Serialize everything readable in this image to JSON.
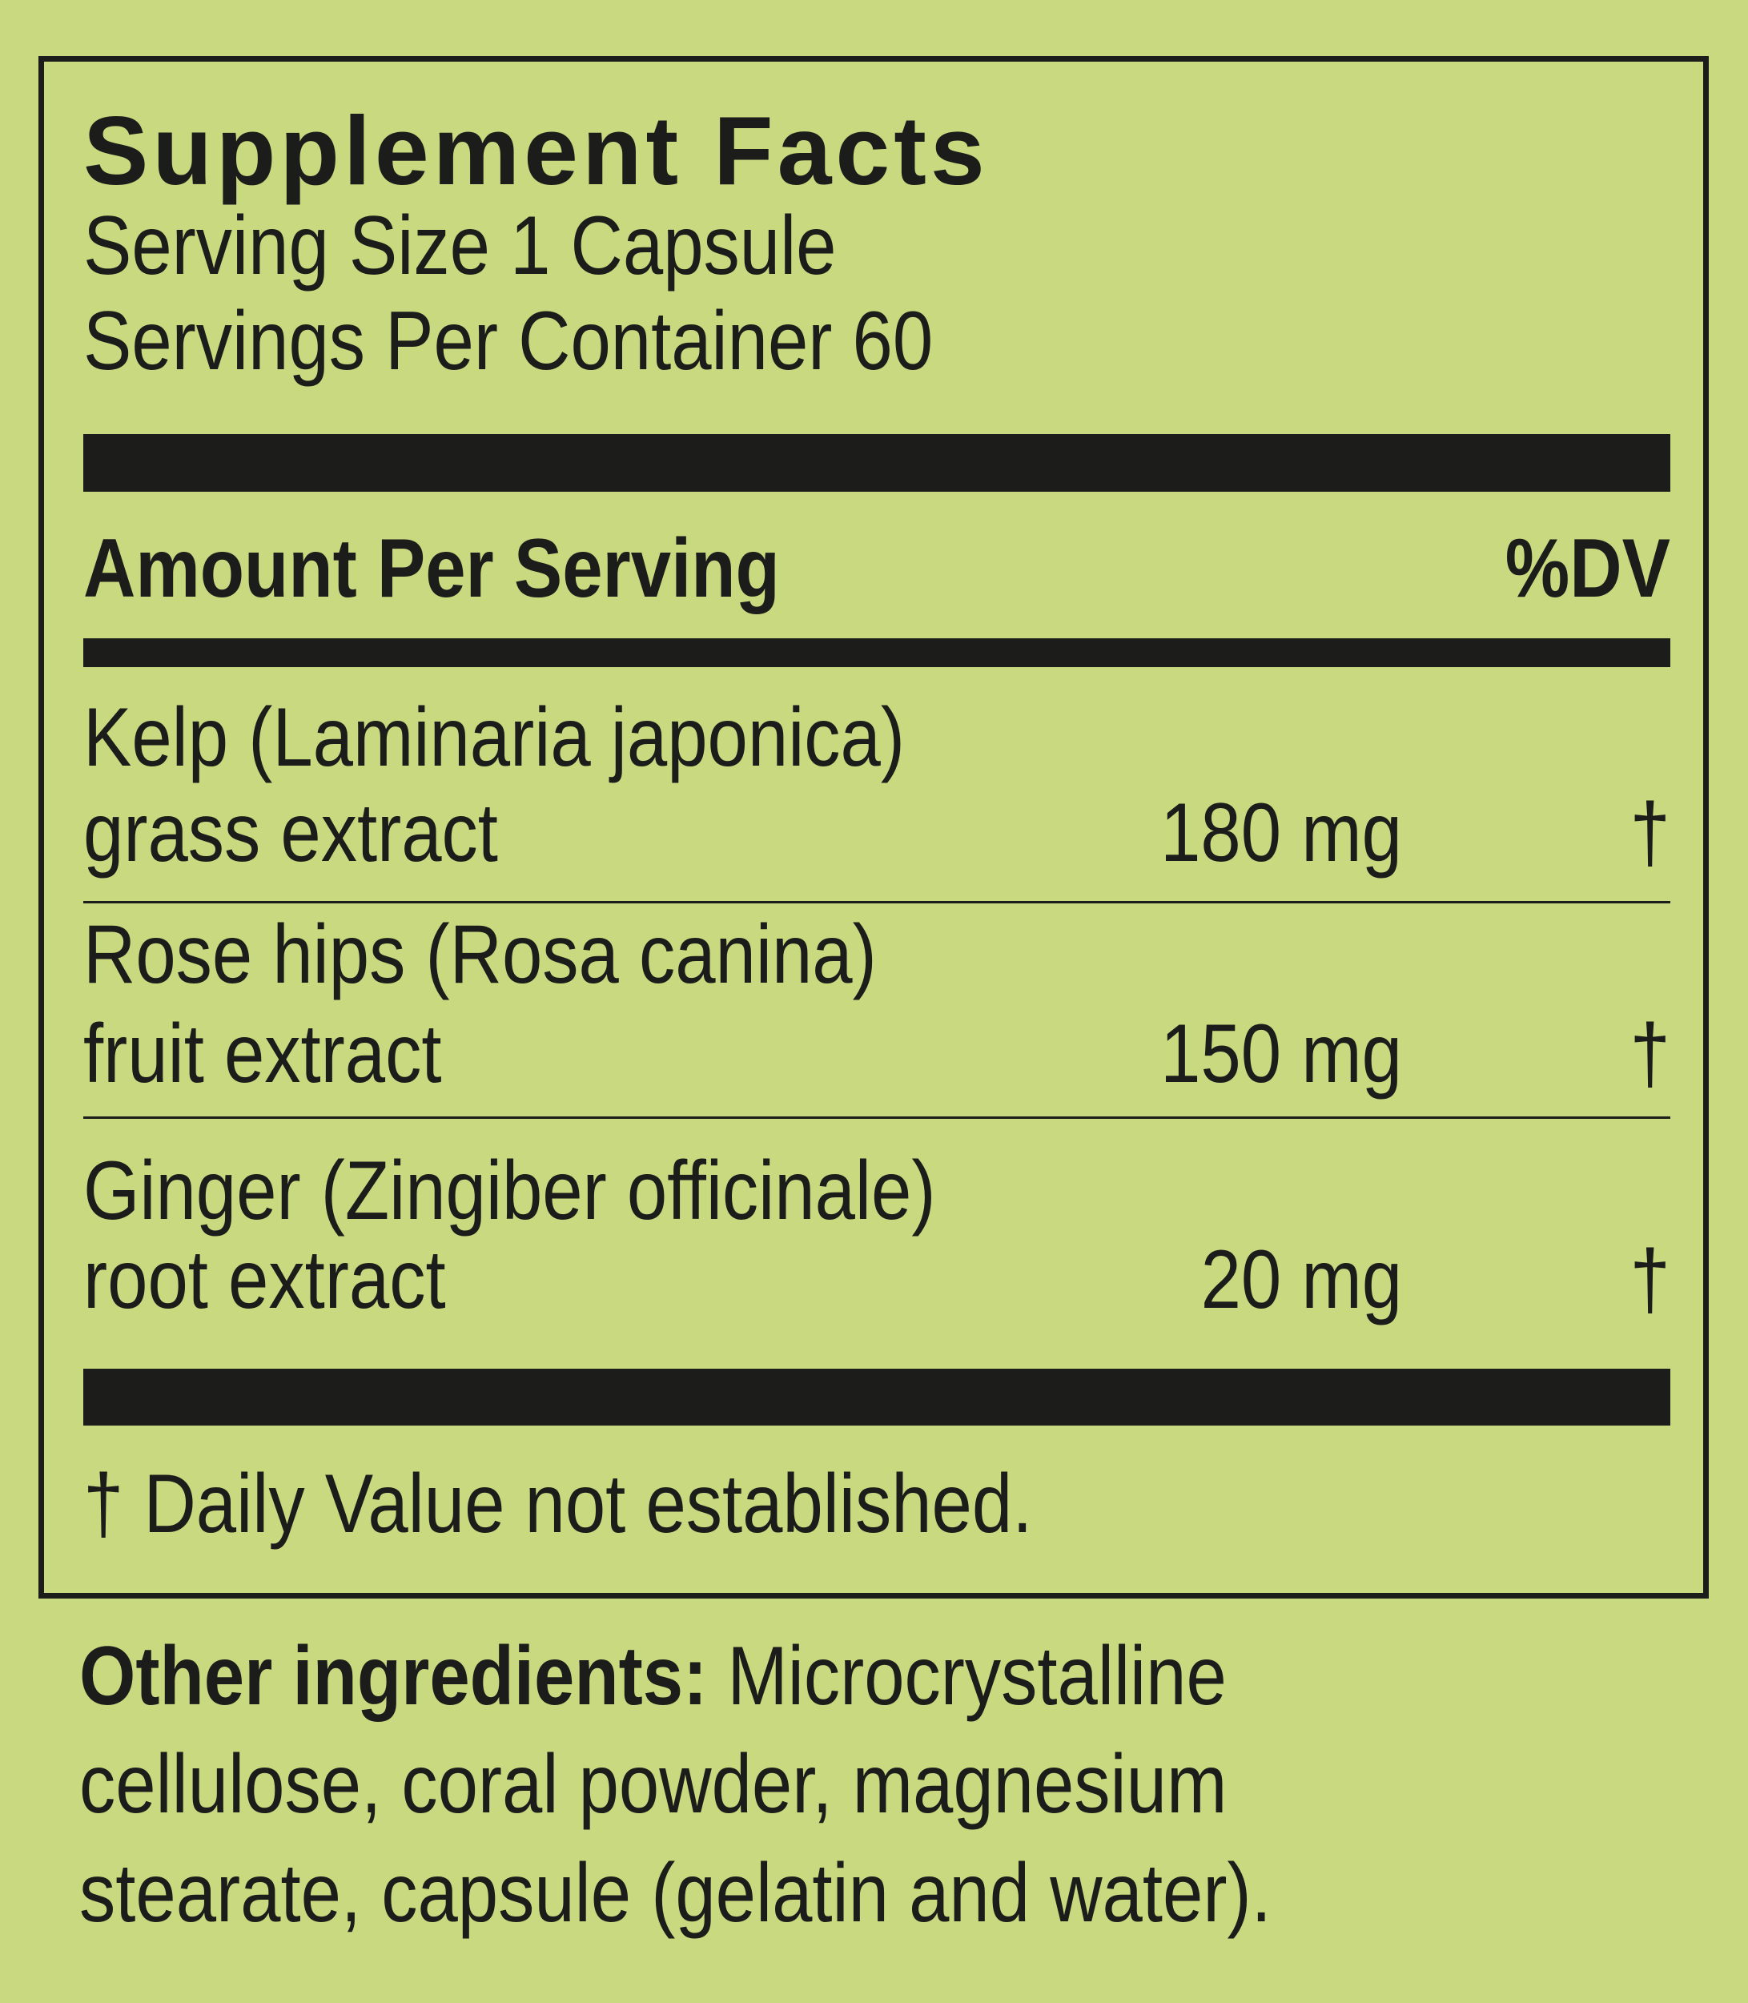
{
  "label": {
    "title": "Supplement Facts",
    "serving_size": "Serving Size 1 Capsule",
    "servings_per_container": "Servings Per Container 60",
    "header_amount": "Amount Per Serving",
    "header_dv": "%DV",
    "ingredients": [
      {
        "name_line1": "Kelp (Laminaria japonica)",
        "name_line2": "grass extract",
        "amount": "180 mg",
        "dv": "†"
      },
      {
        "name_line1": "Rose hips (Rosa canina)",
        "name_line2": "fruit extract",
        "amount": "150 mg",
        "dv": "†"
      },
      {
        "name_line1": "Ginger (Zingiber officinale)",
        "name_line2": "root extract",
        "amount": "20 mg",
        "dv": "†"
      }
    ],
    "footnote": "† Daily Value not established."
  },
  "other_ingredients": {
    "label": "Other ingredients:",
    "line1": " Microcrystalline",
    "line2": "cellulose, coral powder, magnesium",
    "line3": "stearate, capsule (gelatin and water)."
  },
  "colors": {
    "background": "#c8d97f",
    "ink": "#1c1c1b"
  }
}
